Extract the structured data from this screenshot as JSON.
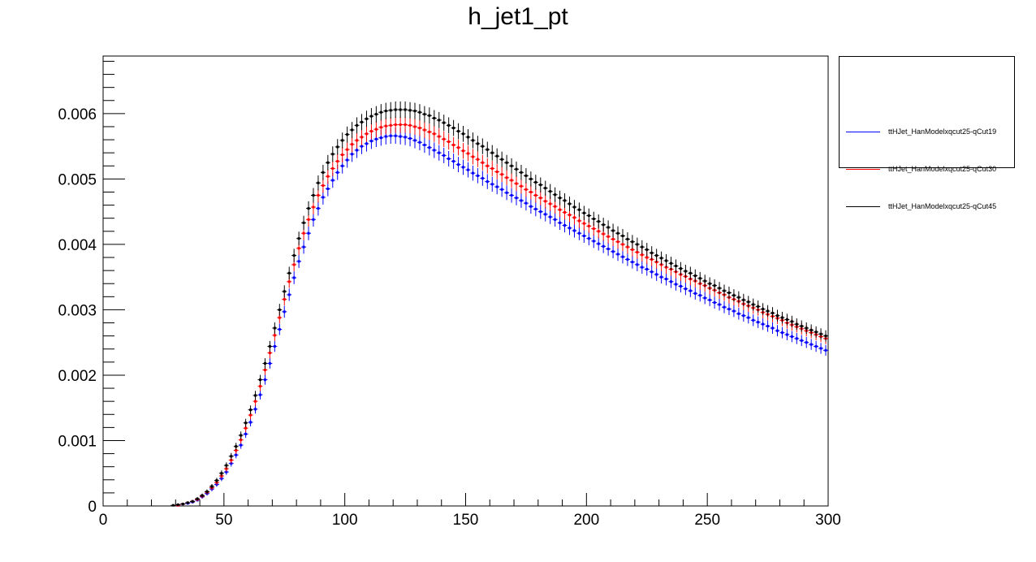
{
  "chart_data": {
    "type": "scatter",
    "title": "h_jet1_pt",
    "xlabel": "",
    "ylabel": "",
    "xlim": [
      0,
      300
    ],
    "ylim": [
      0,
      0.00688
    ],
    "x_ticks": [
      0,
      50,
      100,
      150,
      200,
      250,
      300
    ],
    "x_tick_labels": [
      "0",
      "50",
      "100",
      "150",
      "200",
      "250",
      "300"
    ],
    "y_ticks": [
      0,
      0.001,
      0.002,
      0.003,
      0.004,
      0.005,
      0.006
    ],
    "y_tick_labels": [
      "0",
      "0.001",
      "0.002",
      "0.003",
      "0.004",
      "0.005",
      "0.006"
    ],
    "legend_position": "top-right outside",
    "grid": false,
    "bin_width": 2,
    "series": [
      {
        "name": "ttHJet_HanModelxqcut25-qCut19",
        "color": "#0000ff",
        "x": [
          31,
          33,
          35,
          37,
          39,
          41,
          43,
          45,
          47,
          49,
          51,
          53,
          55,
          57,
          59,
          61,
          63,
          65,
          67,
          69,
          71,
          73,
          75,
          77,
          79,
          81,
          83,
          85,
          87,
          89,
          91,
          93,
          95,
          97,
          99,
          101,
          103,
          105,
          107,
          109,
          111,
          113,
          115,
          117,
          119,
          121,
          123,
          125,
          127,
          129,
          131,
          133,
          135,
          137,
          139,
          141,
          143,
          145,
          147,
          149,
          151,
          153,
          155,
          157,
          159,
          161,
          163,
          165,
          167,
          169,
          171,
          173,
          175,
          177,
          179,
          181,
          183,
          185,
          187,
          189,
          191,
          193,
          195,
          197,
          199,
          201,
          203,
          205,
          207,
          209,
          211,
          213,
          215,
          217,
          219,
          221,
          223,
          225,
          227,
          229,
          231,
          233,
          235,
          237,
          239,
          241,
          243,
          245,
          247,
          249,
          251,
          253,
          255,
          257,
          259,
          261,
          263,
          265,
          267,
          269,
          271,
          273,
          275,
          277,
          279,
          281,
          283,
          285,
          287,
          289,
          291,
          293,
          295,
          297,
          299
        ],
        "y": [
          1e-05,
          3e-05,
          4e-05,
          6e-05,
          9e-05,
          0.00014,
          0.00019,
          0.00026,
          0.00033,
          0.00042,
          0.00052,
          0.00065,
          0.00078,
          0.00093,
          0.0011,
          0.00128,
          0.00148,
          0.0017,
          0.00193,
          0.00218,
          0.00244,
          0.0027,
          0.00297,
          0.00323,
          0.00349,
          0.00374,
          0.00396,
          0.00417,
          0.00438,
          0.00455,
          0.00472,
          0.00485,
          0.00498,
          0.0051,
          0.0052,
          0.00529,
          0.00538,
          0.00544,
          0.0055,
          0.00554,
          0.00558,
          0.00561,
          0.00563,
          0.00565,
          0.00566,
          0.00566,
          0.00565,
          0.00564,
          0.00562,
          0.00559,
          0.00556,
          0.00552,
          0.00548,
          0.00544,
          0.0054,
          0.00536,
          0.00531,
          0.00527,
          0.00522,
          0.00518,
          0.00514,
          0.00509,
          0.00505,
          0.00501,
          0.00496,
          0.00492,
          0.00488,
          0.00484,
          0.00479,
          0.00475,
          0.00471,
          0.00467,
          0.00463,
          0.00458,
          0.00454,
          0.0045,
          0.00446,
          0.00442,
          0.00438,
          0.00433,
          0.00429,
          0.00425,
          0.00421,
          0.00417,
          0.00413,
          0.00409,
          0.00405,
          0.00401,
          0.00397,
          0.00393,
          0.00389,
          0.00385,
          0.00381,
          0.00377,
          0.00373,
          0.00369,
          0.00365,
          0.00362,
          0.00358,
          0.00354,
          0.0035,
          0.00347,
          0.00343,
          0.00339,
          0.00336,
          0.00332,
          0.00329,
          0.00325,
          0.00322,
          0.00318,
          0.00315,
          0.00311,
          0.00308,
          0.00304,
          0.00301,
          0.00298,
          0.00294,
          0.00291,
          0.00288,
          0.00284,
          0.00281,
          0.00278,
          0.00275,
          0.00272,
          0.00268,
          0.00265,
          0.00262,
          0.00259,
          0.00256,
          0.00253,
          0.0025,
          0.00247,
          0.00244,
          0.00241,
          0.00238
        ]
      },
      {
        "name": "ttHJet_HanModelxqcut25-qCut30",
        "color": "#ff0000",
        "x": [
          31,
          33,
          35,
          37,
          39,
          41,
          43,
          45,
          47,
          49,
          51,
          53,
          55,
          57,
          59,
          61,
          63,
          65,
          67,
          69,
          71,
          73,
          75,
          77,
          79,
          81,
          83,
          85,
          87,
          89,
          91,
          93,
          95,
          97,
          99,
          101,
          103,
          105,
          107,
          109,
          111,
          113,
          115,
          117,
          119,
          121,
          123,
          125,
          127,
          129,
          131,
          133,
          135,
          137,
          139,
          141,
          143,
          145,
          147,
          149,
          151,
          153,
          155,
          157,
          159,
          161,
          163,
          165,
          167,
          169,
          171,
          173,
          175,
          177,
          179,
          181,
          183,
          185,
          187,
          189,
          191,
          193,
          195,
          197,
          199,
          201,
          203,
          205,
          207,
          209,
          211,
          213,
          215,
          217,
          219,
          221,
          223,
          225,
          227,
          229,
          231,
          233,
          235,
          237,
          239,
          241,
          243,
          245,
          247,
          249,
          251,
          253,
          255,
          257,
          259,
          261,
          263,
          265,
          267,
          269,
          271,
          273,
          275,
          277,
          279,
          281,
          283,
          285,
          287,
          289,
          291,
          293,
          295,
          297,
          299
        ],
        "y": [
          1e-05,
          3e-05,
          5e-05,
          7e-05,
          0.0001,
          0.00015,
          0.00021,
          0.00028,
          0.00036,
          0.00046,
          0.00057,
          0.0007,
          0.00085,
          0.00101,
          0.00119,
          0.00139,
          0.0016,
          0.00183,
          0.00208,
          0.00234,
          0.00261,
          0.00288,
          0.00316,
          0.00343,
          0.00369,
          0.00394,
          0.00417,
          0.00438,
          0.00457,
          0.00475,
          0.0049,
          0.00504,
          0.00516,
          0.00527,
          0.00537,
          0.00545,
          0.00553,
          0.00559,
          0.00564,
          0.00569,
          0.00573,
          0.00576,
          0.00579,
          0.00581,
          0.00582,
          0.00583,
          0.00583,
          0.00583,
          0.00582,
          0.0058,
          0.00578,
          0.00575,
          0.00572,
          0.00569,
          0.00565,
          0.00561,
          0.00557,
          0.00552,
          0.00548,
          0.00543,
          0.00539,
          0.00534,
          0.0053,
          0.00525,
          0.0052,
          0.00516,
          0.00511,
          0.00507,
          0.00502,
          0.00498,
          0.00493,
          0.00489,
          0.00484,
          0.0048,
          0.00475,
          0.00471,
          0.00466,
          0.00462,
          0.00458,
          0.00453,
          0.00449,
          0.00445,
          0.00441,
          0.00436,
          0.00432,
          0.00428,
          0.00424,
          0.0042,
          0.00416,
          0.00412,
          0.00408,
          0.00404,
          0.004,
          0.00396,
          0.00392,
          0.00388,
          0.00384,
          0.0038,
          0.00377,
          0.00373,
          0.00369,
          0.00365,
          0.00362,
          0.00358,
          0.00354,
          0.00351,
          0.00347,
          0.00344,
          0.0034,
          0.00337,
          0.00333,
          0.0033,
          0.00326,
          0.00323,
          0.00319,
          0.00316,
          0.00313,
          0.00309,
          0.00306,
          0.00303,
          0.003,
          0.00296,
          0.00293,
          0.0029,
          0.00287,
          0.00284,
          0.0028,
          0.00277,
          0.00274,
          0.00271,
          0.00268,
          0.00265,
          0.00262,
          0.00259,
          0.00256
        ]
      },
      {
        "name": "ttHJet_HanModelxqcut25-qCut45",
        "color": "#000000",
        "x": [
          29,
          31,
          33,
          35,
          37,
          39,
          41,
          43,
          45,
          47,
          49,
          51,
          53,
          55,
          57,
          59,
          61,
          63,
          65,
          67,
          69,
          71,
          73,
          75,
          77,
          79,
          81,
          83,
          85,
          87,
          89,
          91,
          93,
          95,
          97,
          99,
          101,
          103,
          105,
          107,
          109,
          111,
          113,
          115,
          117,
          119,
          121,
          123,
          125,
          127,
          129,
          131,
          133,
          135,
          137,
          139,
          141,
          143,
          145,
          147,
          149,
          151,
          153,
          155,
          157,
          159,
          161,
          163,
          165,
          167,
          169,
          171,
          173,
          175,
          177,
          179,
          181,
          183,
          185,
          187,
          189,
          191,
          193,
          195,
          197,
          199,
          201,
          203,
          205,
          207,
          209,
          211,
          213,
          215,
          217,
          219,
          221,
          223,
          225,
          227,
          229,
          231,
          233,
          235,
          237,
          239,
          241,
          243,
          245,
          247,
          249,
          251,
          253,
          255,
          257,
          259,
          261,
          263,
          265,
          267,
          269,
          271,
          273,
          275,
          277,
          279,
          281,
          283,
          285,
          287,
          289,
          291,
          293,
          295,
          297,
          299
        ],
        "y": [
          1e-05,
          2e-05,
          3e-05,
          5e-05,
          7e-05,
          0.00011,
          0.00016,
          0.00022,
          0.0003,
          0.00039,
          0.0005,
          0.00062,
          0.00076,
          0.00091,
          0.00108,
          0.00127,
          0.00147,
          0.00169,
          0.00193,
          0.00218,
          0.00244,
          0.00272,
          0.003,
          0.00328,
          0.00356,
          0.00383,
          0.00409,
          0.00433,
          0.00455,
          0.00475,
          0.00494,
          0.0051,
          0.00525,
          0.00538,
          0.00549,
          0.00559,
          0.00568,
          0.00575,
          0.00582,
          0.00587,
          0.00592,
          0.00596,
          0.00599,
          0.00602,
          0.00604,
          0.00605,
          0.00606,
          0.00606,
          0.00606,
          0.00605,
          0.00604,
          0.00602,
          0.00599,
          0.00597,
          0.00593,
          0.0059,
          0.00586,
          0.00582,
          0.00578,
          0.00573,
          0.00569,
          0.00564,
          0.00559,
          0.00554,
          0.0055,
          0.00545,
          0.0054,
          0.00535,
          0.0053,
          0.00525,
          0.0052,
          0.00515,
          0.0051,
          0.00505,
          0.005,
          0.00495,
          0.00491,
          0.00486,
          0.00481,
          0.00476,
          0.00471,
          0.00467,
          0.00462,
          0.00457,
          0.00453,
          0.00448,
          0.00444,
          0.00439,
          0.00435,
          0.0043,
          0.00426,
          0.00421,
          0.00417,
          0.00413,
          0.00408,
          0.00404,
          0.004,
          0.00396,
          0.00392,
          0.00387,
          0.00383,
          0.00379,
          0.00375,
          0.00371,
          0.00367,
          0.00363,
          0.00359,
          0.00356,
          0.00352,
          0.00348,
          0.00344,
          0.0034,
          0.00337,
          0.00333,
          0.00329,
          0.00326,
          0.00322,
          0.00319,
          0.00315,
          0.00312,
          0.00308,
          0.00305,
          0.00301,
          0.00298,
          0.00295,
          0.00291,
          0.00288,
          0.00285,
          0.00282,
          0.00278,
          0.00275,
          0.00272,
          0.00269,
          0.00266,
          0.00263,
          0.0026
        ]
      }
    ]
  }
}
